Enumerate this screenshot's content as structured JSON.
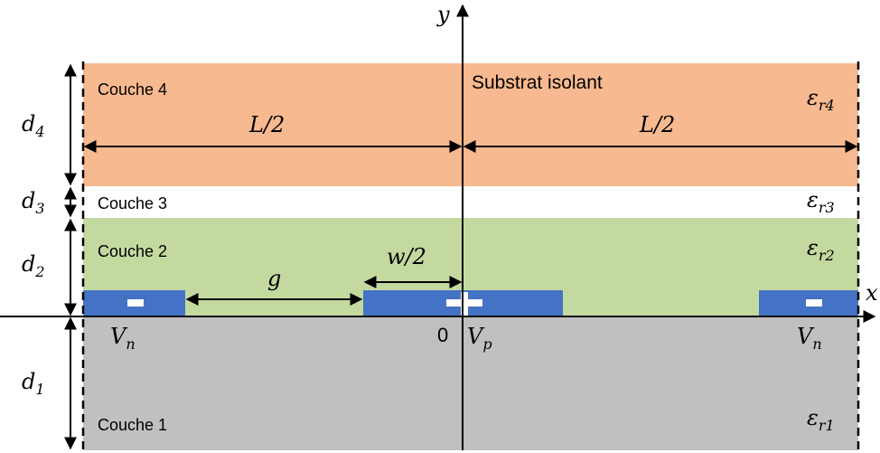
{
  "colors": {
    "layer4": "#f7b98f",
    "layer3": "#ffffff",
    "layer2": "#c4d9a0",
    "layer1": "#c0c0c0",
    "electrode": "#4472c4",
    "axis": "#000000"
  },
  "axes": {
    "x": "x",
    "y": "y"
  },
  "substrate_label": "Substrat isolant",
  "origin_label": "0",
  "layers": [
    {
      "id": "layer4",
      "name": "Couche 4",
      "thickness": "d",
      "thickness_sub": "4",
      "eps": "ε",
      "eps_sub": "r4"
    },
    {
      "id": "layer3",
      "name": "Couche 3",
      "thickness": "d",
      "thickness_sub": "3",
      "eps": "ε",
      "eps_sub": "r3"
    },
    {
      "id": "layer2",
      "name": "Couche 2",
      "thickness": "d",
      "thickness_sub": "2",
      "eps": "ε",
      "eps_sub": "r2"
    },
    {
      "id": "layer1",
      "name": "Couche 1",
      "thickness": "d",
      "thickness_sub": "1",
      "eps": "ε",
      "eps_sub": "r1"
    }
  ],
  "dimensions": {
    "half_period_left": "L/2",
    "half_period_right": "L/2",
    "gap": "g",
    "half_width": "w/2"
  },
  "potentials": {
    "left": {
      "main": "V",
      "sub": "n"
    },
    "center": {
      "main": "V",
      "sub": "p"
    },
    "right": {
      "main": "V",
      "sub": "n"
    }
  }
}
